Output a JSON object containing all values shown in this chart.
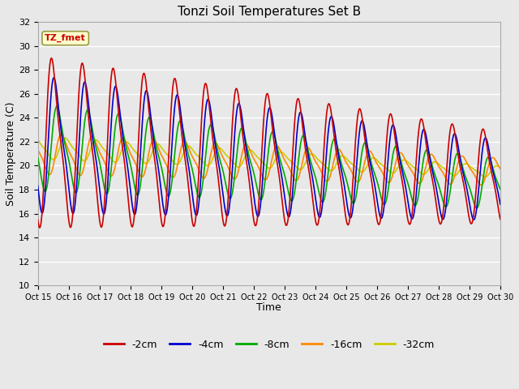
{
  "title": "Tonzi Soil Temperatures Set B",
  "xlabel": "Time",
  "ylabel": "Soil Temperature (C)",
  "ylim": [
    10,
    32
  ],
  "yticks": [
    10,
    12,
    14,
    16,
    18,
    20,
    22,
    24,
    26,
    28,
    30,
    32
  ],
  "x_labels": [
    "Oct 15",
    "Oct 16",
    "Oct 17",
    "Oct 18",
    "Oct 19",
    "Oct 20",
    "Oct 21",
    "Oct 22",
    "Oct 23",
    "Oct 24",
    "Oct 25",
    "Oct 26",
    "Oct 27",
    "Oct 28",
    "Oct 29",
    "Oct 30"
  ],
  "annotation_label": "TZ_fmet",
  "annotation_color": "#cc0000",
  "annotation_bg": "#ffffcc",
  "annotation_border": "#999944",
  "colors": {
    "-2cm": "#cc0000",
    "-4cm": "#0000cc",
    "-8cm": "#00aa00",
    "-16cm": "#ff8800",
    "-32cm": "#cccc00"
  },
  "legend_labels": [
    "-2cm",
    "-4cm",
    "-8cm",
    "-16cm",
    "-32cm"
  ],
  "background_color": "#e8e8e8",
  "grid_color": "#ffffff",
  "n_points": 1500
}
